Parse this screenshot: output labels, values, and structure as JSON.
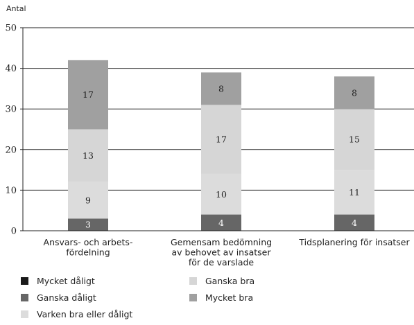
{
  "chart_data": {
    "type": "bar",
    "stacked": true,
    "ylabel": "Antal",
    "ylim": [
      0,
      50
    ],
    "yticks": [
      0,
      10,
      20,
      30,
      40,
      50
    ],
    "grid": true,
    "categories": [
      [
        "Ansvars- och arbets-",
        "fördelning"
      ],
      [
        "Gemensam bedömning",
        "av behovet av insatser",
        "för de varslade"
      ],
      [
        "Tidsplanering för insatser"
      ]
    ],
    "series": [
      {
        "name": "Mycket dåligt",
        "color": "#1a1a1a",
        "values": [
          0,
          0,
          0
        ]
      },
      {
        "name": "Ganska dåligt",
        "color": "#666666",
        "values": [
          3,
          4,
          4
        ]
      },
      {
        "name": "Varken bra eller dåligt",
        "color": "#dcdcdc",
        "values": [
          9,
          10,
          11
        ]
      },
      {
        "name": "Ganska bra",
        "color": "#d6d6d6",
        "values": [
          13,
          17,
          15
        ]
      },
      {
        "name": "Mycket bra",
        "color": "#a0a0a0",
        "values": [
          17,
          8,
          8
        ]
      }
    ],
    "legend_position": "bottom-left"
  }
}
